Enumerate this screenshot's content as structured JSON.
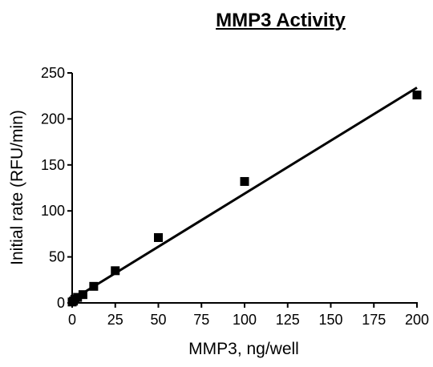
{
  "chart_data": {
    "type": "scatter",
    "title": "MMP3 Activity",
    "xlabel": "MMP3, ng/well",
    "ylabel": "Initial rate (RFU/min)",
    "xlim": [
      0,
      200
    ],
    "ylim": [
      0,
      250
    ],
    "xticks": [
      0,
      25,
      50,
      75,
      100,
      125,
      150,
      175,
      200
    ],
    "yticks": [
      0,
      50,
      100,
      150,
      200,
      250
    ],
    "grid": false,
    "series": [
      {
        "points": [
          {
            "x": 0,
            "y": 1
          },
          {
            "x": 0.78,
            "y": 2
          },
          {
            "x": 1.56,
            "y": 4
          },
          {
            "x": 3.13,
            "y": 6
          },
          {
            "x": 6.25,
            "y": 9
          },
          {
            "x": 12.5,
            "y": 18
          },
          {
            "x": 25,
            "y": 35
          },
          {
            "x": 50,
            "y": 71
          },
          {
            "x": 100,
            "y": 132
          },
          {
            "x": 200,
            "y": 226
          }
        ],
        "marker": "square",
        "color": "#000000"
      }
    ],
    "fit_line": {
      "x": [
        0,
        200
      ],
      "y": [
        3.5,
        234
      ]
    }
  }
}
